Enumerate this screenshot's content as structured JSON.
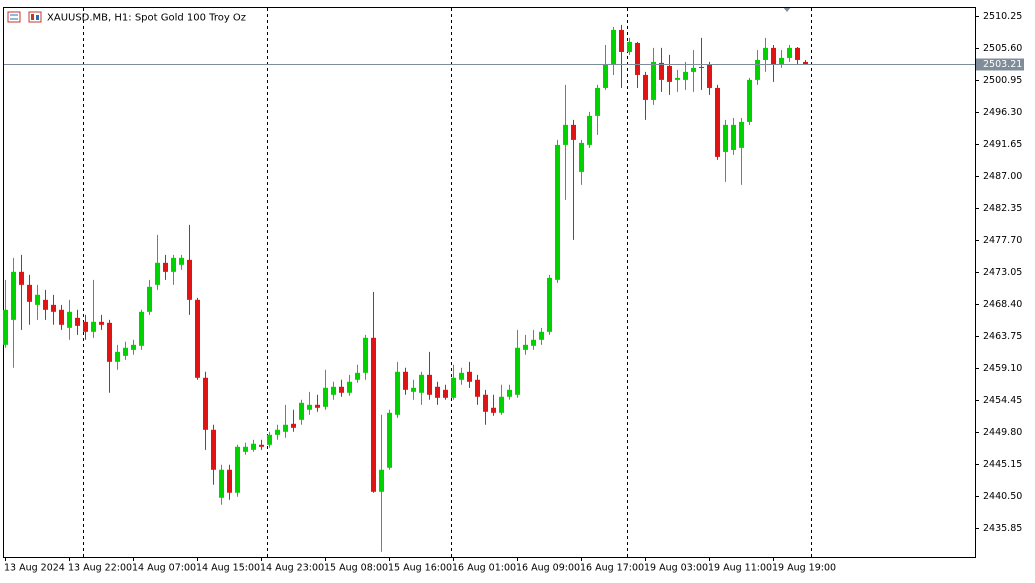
{
  "chart_data": {
    "type": "candlestick",
    "title": "XAUUSD.MB, H1:  Spot Gold 100 Troy Oz",
    "categories": [
      "13 Aug 2024",
      null,
      null,
      null,
      null,
      null,
      null,
      null,
      "13 Aug 22:00",
      null,
      null,
      null,
      null,
      null,
      null,
      null,
      "14 Aug 07:00",
      null,
      null,
      null,
      null,
      null,
      null,
      null,
      "14 Aug 15:00",
      null,
      null,
      null,
      null,
      null,
      null,
      null,
      "14 Aug 23:00",
      null,
      null,
      null,
      null,
      null,
      null,
      null,
      "15 Aug 08:00",
      null,
      null,
      null,
      null,
      null,
      null,
      null,
      "15 Aug 16:00",
      null,
      null,
      null,
      null,
      null,
      null,
      null,
      "16 Aug 01:00",
      null,
      null,
      null,
      null,
      null,
      null,
      null,
      "16 Aug 09:00",
      null,
      null,
      null,
      null,
      null,
      null,
      null,
      "16 Aug 17:00",
      null,
      null,
      null,
      null,
      null,
      null,
      null,
      "19 Aug 03:00",
      null,
      null,
      null,
      null,
      null,
      null,
      null,
      "19 Aug 11:00",
      null,
      null,
      null,
      null,
      null,
      null,
      null,
      "19 Aug 19:00",
      null,
      null,
      null,
      null
    ],
    "open": [
      2462.44,
      2466.07,
      2473.05,
      2471.16,
      2468.25,
      2468.98,
      2468.25,
      2467.53,
      2464.91,
      2466.36,
      2465.78,
      2464.33,
      2465.78,
      2465.64,
      2459.97,
      2460.84,
      2461.71,
      2462.3,
      2467.24,
      2471.16,
      2474.36,
      2473.05,
      2474.07,
      2474.79,
      2468.98,
      2457.65,
      2450.09,
      2440.21,
      2444.28,
      2440.94,
      2446.89,
      2447.18,
      2447.91,
      2447.91,
      2449.36,
      2449.8,
      2450.96,
      2451.54,
      2453.0,
      2453.72,
      2453.43,
      2455.18,
      2456.34,
      2455.47,
      2457.36,
      2458.37,
      2463.46,
      2441.08,
      2444.57,
      2452.27,
      2458.52,
      2455.61,
      2455.47,
      2458.08,
      2456.34,
      2455.9,
      2454.74,
      2457.36,
      2458.52,
      2457.36,
      2455.18,
      2453.29,
      2452.56,
      2454.89,
      2455.18,
      2461.71,
      2462.3,
      2463.17,
      2464.33,
      2471.89,
      2491.5,
      2494.41,
      2487.58,
      2491.5,
      2495.72,
      2499.78,
      2503.13,
      2508.21,
      2505.01,
      2506.32,
      2501.67,
      2498.04,
      2503.42,
      2502.98,
      2500.95,
      2500.95,
      2502.11,
      2502.83,
      2503.13,
      2499.78,
      2490.48,
      2490.77,
      2491.07,
      2494.84,
      2500.95,
      2503.85,
      2505.6,
      2503.13,
      2504.14,
      2505.6,
      2503.56
    ],
    "high": [
      2471.89,
      2475.08,
      2475.52,
      2472.61,
      2471.16,
      2470.43,
      2469.71,
      2468.25,
      2468.98,
      2467.53,
      2466.8,
      2471.89,
      2466.8,
      2466.07,
      2462.44,
      2462.88,
      2463.17,
      2467.53,
      2471.89,
      2478.42,
      2475.52,
      2475.52,
      2475.52,
      2479.88,
      2469.27,
      2458.52,
      2450.82,
      2445.01,
      2445.01,
      2447.91,
      2448.2,
      2448.64,
      2448.64,
      2449.8,
      2450.82,
      2453.72,
      2453.0,
      2454.45,
      2455.61,
      2455.18,
      2458.81,
      2457.07,
      2457.36,
      2458.08,
      2459.54,
      2463.89,
      2470.14,
      2452.27,
      2453.0,
      2459.97,
      2459.1,
      2457.36,
      2458.52,
      2461.42,
      2457.07,
      2456.63,
      2459.54,
      2459.1,
      2459.97,
      2458.08,
      2455.9,
      2455.18,
      2456.63,
      2456.63,
      2464.62,
      2463.89,
      2464.62,
      2464.91,
      2472.61,
      2492.23,
      2500.22,
      2495.13,
      2492.23,
      2496.3,
      2500.22,
      2506.03,
      2508.65,
      2508.94,
      2507.05,
      2506.47,
      2502.11,
      2505.6,
      2505.6,
      2504.58,
      2502.4,
      2503.56,
      2505.3,
      2507.05,
      2503.56,
      2500.22,
      2495.13,
      2495.42,
      2495.42,
      2501.24,
      2505.3,
      2507.05,
      2506.03,
      2505.3,
      2506.03,
      2505.74,
      2503.85
    ],
    "low": [
      2462.01,
      2459.1,
      2464.62,
      2465.35,
      2466.07,
      2466.07,
      2465.35,
      2464.62,
      2463.17,
      2463.89,
      2463.17,
      2463.46,
      2464.62,
      2455.47,
      2458.81,
      2460.26,
      2460.99,
      2461.71,
      2466.8,
      2470.43,
      2471.89,
      2471.16,
      2473.34,
      2466.8,
      2457.36,
      2447.18,
      2442.1,
      2439.19,
      2439.92,
      2440.36,
      2446.46,
      2446.89,
      2447.18,
      2447.48,
      2448.64,
      2448.93,
      2449.8,
      2450.82,
      2452.27,
      2452.71,
      2453.0,
      2454.45,
      2454.89,
      2455.03,
      2456.92,
      2457.36,
      2440.94,
      2432.36,
      2444.28,
      2451.83,
      2455.18,
      2454.45,
      2453.72,
      2454.45,
      2453.72,
      2454.45,
      2454.45,
      2456.63,
      2456.19,
      2453.72,
      2450.82,
      2452.13,
      2452.27,
      2454.45,
      2454.74,
      2460.99,
      2461.71,
      2462.44,
      2463.89,
      2471.45,
      2483.51,
      2477.7,
      2485.69,
      2491.07,
      2492.95,
      2499.49,
      2501.67,
      2499.78,
      2504.58,
      2499.78,
      2495.13,
      2497.31,
      2499.2,
      2498.77,
      2499.2,
      2499.49,
      2499.2,
      2499.49,
      2498.77,
      2489.32,
      2486.12,
      2490.05,
      2485.69,
      2494.41,
      2500.22,
      2502.11,
      2500.66,
      2502.69,
      2503.56,
      2503.13,
      2503.13
    ],
    "close": [
      2467.53,
      2473.05,
      2471.16,
      2468.69,
      2469.71,
      2467.53,
      2467.24,
      2465.35,
      2467.24,
      2465.2,
      2464.33,
      2465.78,
      2465.35,
      2459.97,
      2461.42,
      2462.01,
      2462.44,
      2467.24,
      2470.87,
      2474.36,
      2473.05,
      2475.08,
      2475.08,
      2468.98,
      2457.65,
      2450.09,
      2444.28,
      2444.28,
      2440.94,
      2447.62,
      2447.62,
      2448.06,
      2447.62,
      2449.36,
      2450.09,
      2450.82,
      2450.38,
      2454.01,
      2453.72,
      2453.29,
      2456.19,
      2456.34,
      2455.47,
      2457.07,
      2458.37,
      2463.46,
      2441.08,
      2444.28,
      2452.56,
      2458.52,
      2455.9,
      2456.19,
      2458.08,
      2455.18,
      2454.74,
      2454.74,
      2457.65,
      2458.37,
      2457.07,
      2454.89,
      2452.71,
      2452.56,
      2454.89,
      2455.9,
      2462.01,
      2462.44,
      2463.17,
      2464.33,
      2472.18,
      2491.5,
      2494.41,
      2492.23,
      2491.79,
      2495.72,
      2499.78,
      2503.13,
      2508.21,
      2505.01,
      2506.47,
      2501.67,
      2498.04,
      2503.56,
      2500.95,
      2500.66,
      2501.24,
      2502.11,
      2502.69,
      2502.69,
      2499.78,
      2489.76,
      2494.41,
      2494.41,
      2494.84,
      2500.95,
      2503.85,
      2505.6,
      2503.13,
      2504.14,
      2505.6,
      2503.85,
      2503.21
    ],
    "up_color": "#00d200",
    "down_color": "#e01414",
    "current_price": 2503.21,
    "ylim": [
      2431.6,
      2511.4
    ],
    "yticks": [
      2510.25,
      {
        "value": 2505.6,
        "label": "2505.60"
      },
      2500.95,
      {
        "value": 2496.3,
        "label": "2496.30"
      },
      2491.65,
      {
        "value": 2487,
        "label": "2487.00"
      },
      2482.35,
      {
        "value": 2477.7,
        "label": "2477.70"
      },
      2473.05,
      {
        "value": 2468.4,
        "label": "2468.40"
      },
      2463.75,
      {
        "value": 2459.1,
        "label": "2459.10"
      },
      2454.45,
      {
        "value": 2449.8,
        "label": "2449.80"
      },
      2445.15,
      {
        "value": 2440.5,
        "label": "2440.50"
      },
      2435.85
    ],
    "grid": false
  }
}
